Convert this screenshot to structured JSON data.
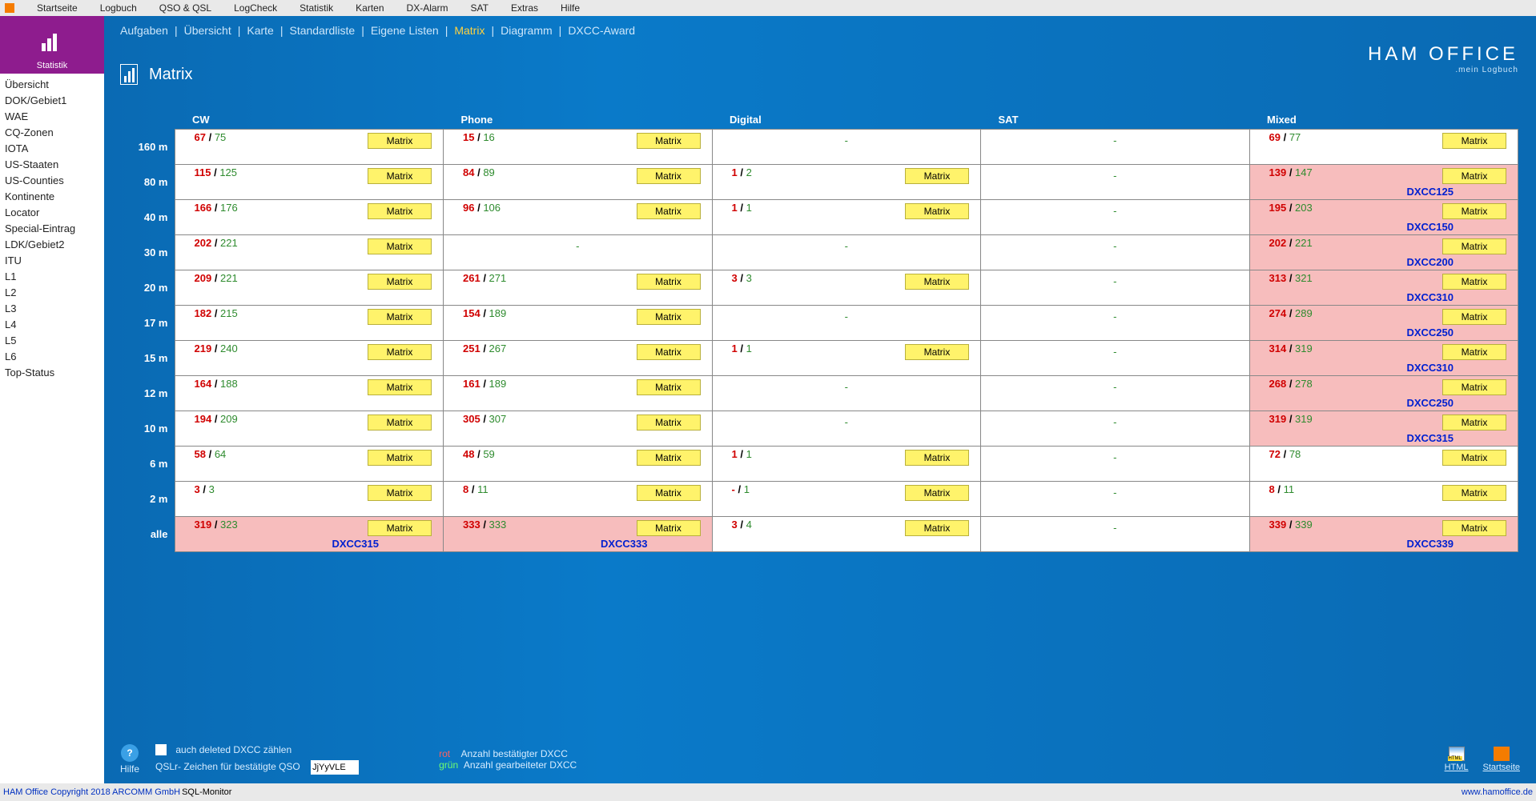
{
  "top_menu": [
    "Startseite",
    "Logbuch",
    "QSO & QSL",
    "LogCheck",
    "Statistik",
    "Karten",
    "DX-Alarm",
    "SAT",
    "Extras",
    "Hilfe"
  ],
  "left": {
    "title": "Statistik",
    "items": [
      "Übersicht",
      "DOK/Gebiet1",
      "WAE",
      "CQ-Zonen",
      "IOTA",
      "US-Staaten",
      "US-Counties",
      "Kontinente",
      "Locator",
      "Special-Eintrag",
      "LDK/Gebiet2",
      "ITU",
      "L1",
      "L2",
      "L3",
      "L4",
      "L5",
      "L6",
      "Top-Status"
    ]
  },
  "sub_tabs": [
    "Aufgaben",
    "Übersicht",
    "Karte",
    "Standardliste",
    "Eigene Listen",
    "Matrix",
    "Diagramm",
    "DXCC-Award"
  ],
  "sub_tabs_active": 5,
  "brand": {
    "line1": "HAM OFFICE",
    "line2": ".mein Logbuch"
  },
  "page_title": "Matrix",
  "columns": [
    "CW",
    "Phone",
    "Digital",
    "SAT",
    "Mixed"
  ],
  "bands": [
    "160 m",
    "80 m",
    "40 m",
    "30 m",
    "20 m",
    "17 m",
    "15 m",
    "12 m",
    "10 m",
    "6 m",
    "2 m",
    "alle"
  ],
  "btn_label": "Matrix",
  "cells": [
    [
      {
        "r": "67",
        "g": "75",
        "btn": true
      },
      {
        "r": "15",
        "g": "16",
        "btn": true
      },
      {
        "dash": true
      },
      {
        "dash": true
      },
      {
        "r": "69",
        "g": "77",
        "btn": true
      }
    ],
    [
      {
        "r": "115",
        "g": "125",
        "btn": true
      },
      {
        "r": "84",
        "g": "89",
        "btn": true
      },
      {
        "r": "1",
        "g": "2",
        "btn": true
      },
      {
        "dash": true
      },
      {
        "r": "139",
        "g": "147",
        "btn": true,
        "pink": true,
        "dxcc": "DXCC125"
      }
    ],
    [
      {
        "r": "166",
        "g": "176",
        "btn": true
      },
      {
        "r": "96",
        "g": "106",
        "btn": true
      },
      {
        "r": "1",
        "g": "1",
        "btn": true
      },
      {
        "dash": true
      },
      {
        "r": "195",
        "g": "203",
        "btn": true,
        "pink": true,
        "dxcc": "DXCC150"
      }
    ],
    [
      {
        "r": "202",
        "g": "221",
        "btn": true
      },
      {
        "dash": true
      },
      {
        "dash": true
      },
      {
        "dash": true
      },
      {
        "r": "202",
        "g": "221",
        "btn": true,
        "pink": true,
        "dxcc": "DXCC200"
      }
    ],
    [
      {
        "r": "209",
        "g": "221",
        "btn": true
      },
      {
        "r": "261",
        "g": "271",
        "btn": true
      },
      {
        "r": "3",
        "g": "3",
        "btn": true
      },
      {
        "dash": true
      },
      {
        "r": "313",
        "g": "321",
        "btn": true,
        "pink": true,
        "dxcc": "DXCC310"
      }
    ],
    [
      {
        "r": "182",
        "g": "215",
        "btn": true
      },
      {
        "r": "154",
        "g": "189",
        "btn": true
      },
      {
        "dash": true
      },
      {
        "dash": true
      },
      {
        "r": "274",
        "g": "289",
        "btn": true,
        "pink": true,
        "dxcc": "DXCC250"
      }
    ],
    [
      {
        "r": "219",
        "g": "240",
        "btn": true
      },
      {
        "r": "251",
        "g": "267",
        "btn": true
      },
      {
        "r": "1",
        "g": "1",
        "btn": true
      },
      {
        "dash": true
      },
      {
        "r": "314",
        "g": "319",
        "btn": true,
        "pink": true,
        "dxcc": "DXCC310"
      }
    ],
    [
      {
        "r": "164",
        "g": "188",
        "btn": true
      },
      {
        "r": "161",
        "g": "189",
        "btn": true
      },
      {
        "dash": true
      },
      {
        "dash": true
      },
      {
        "r": "268",
        "g": "278",
        "btn": true,
        "pink": true,
        "dxcc": "DXCC250"
      }
    ],
    [
      {
        "r": "194",
        "g": "209",
        "btn": true
      },
      {
        "r": "305",
        "g": "307",
        "btn": true
      },
      {
        "dash": true
      },
      {
        "dash": true
      },
      {
        "r": "319",
        "g": "319",
        "btn": true,
        "pink": true,
        "dxcc": "DXCC315"
      }
    ],
    [
      {
        "r": "58",
        "g": "64",
        "btn": true
      },
      {
        "r": "48",
        "g": "59",
        "btn": true
      },
      {
        "r": "1",
        "g": "1",
        "btn": true
      },
      {
        "dash": true
      },
      {
        "r": "72",
        "g": "78",
        "btn": true
      }
    ],
    [
      {
        "r": "3",
        "g": "3",
        "btn": true
      },
      {
        "r": "8",
        "g": "11",
        "btn": true
      },
      {
        "r": "-",
        "g": "1",
        "btn": true
      },
      {
        "dash": true
      },
      {
        "r": "8",
        "g": "11",
        "btn": true
      }
    ],
    [
      {
        "r": "319",
        "g": "323",
        "btn": true,
        "pink": true,
        "dxcc": "DXCC315"
      },
      {
        "r": "333",
        "g": "333",
        "btn": true,
        "pink": true,
        "dxcc": "DXCC333"
      },
      {
        "r": "3",
        "g": "4",
        "btn": true
      },
      {
        "dash": true
      },
      {
        "r": "339",
        "g": "339",
        "btn": true,
        "pink": true,
        "dxcc": "DXCC339"
      }
    ]
  ],
  "bottom": {
    "help": "Hilfe",
    "chk_label": "auch deleted DXCC zählen",
    "qslr_label": "QSLr- Zeichen für bestätigte QSO",
    "qslr_value": "JjYyVLE",
    "legend_rot": "rot",
    "legend_rot_text": "Anzahl bestätigter DXCC",
    "legend_gruen": "grün",
    "legend_gruen_text": "Anzahl gearbeiteter DXCC",
    "html_label": "HTML",
    "start_label": "Startseite"
  },
  "status": {
    "copy": "HAM Office Copyright 2018 ARCOMM GmbH",
    "sql": "SQL-Monitor",
    "url": "www.hamoffice.de"
  }
}
